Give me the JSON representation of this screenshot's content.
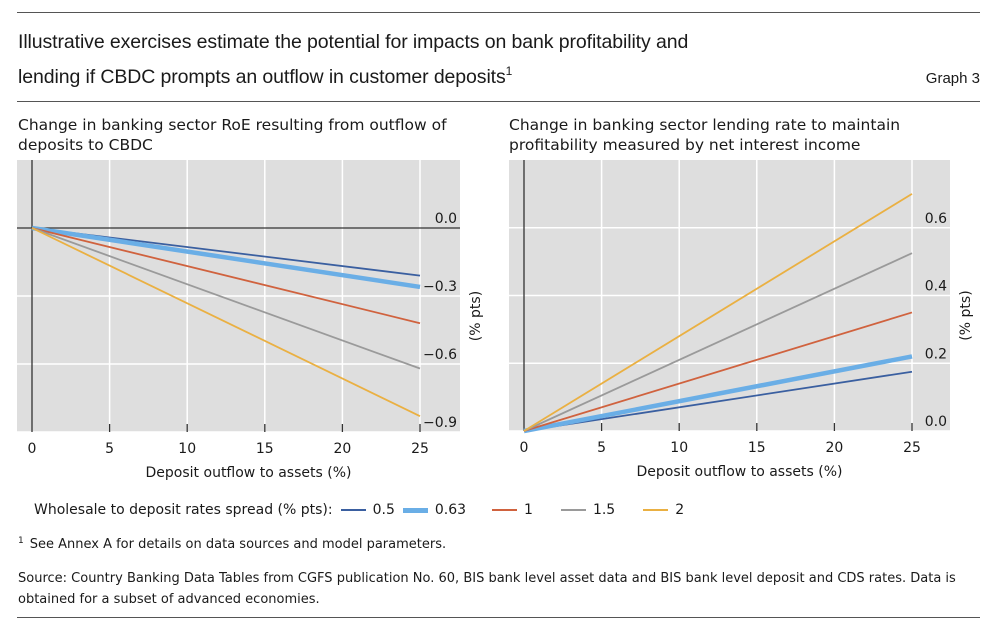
{
  "header": {
    "title_line1": "Illustrative exercises estimate the potential for impacts on bank profitability and",
    "title_line2": "lending if CBDC prompts an outflow in customer deposits",
    "title_footnote_mark": "1",
    "graph_number": "Graph 3"
  },
  "legend": {
    "label": "Wholesale to deposit rates spread (% pts):",
    "items": [
      {
        "label": "0.5",
        "color": "#3a5fa0"
      },
      {
        "label": "0.63",
        "color": "#6aaee6"
      },
      {
        "label": "1",
        "color": "#d0623e"
      },
      {
        "label": "1.5",
        "color": "#9a9a9a"
      },
      {
        "label": "2",
        "color": "#eab042"
      }
    ]
  },
  "footnote": {
    "mark": "1",
    "text": "See Annex A for details on data sources and model parameters."
  },
  "source": "Source: Country Banking Data Tables from CGFS publication No. 60, BIS bank level asset data and BIS bank level deposit and CDS rates. Data is obtained for a subset of advanced economies.",
  "chart_data": [
    {
      "type": "line",
      "title": "Change in banking sector RoE resulting from outflow of deposits to CBDC",
      "xlabel": "Deposit outflow to assets (%)",
      "ylabel": "(% pts)",
      "x": [
        0,
        25
      ],
      "xticks": [
        "0",
        "5",
        "10",
        "15",
        "20",
        "25"
      ],
      "yticks": [
        "0.0",
        "−0.3",
        "−0.6",
        "−0.9"
      ],
      "ytick_values": [
        0,
        -0.3,
        -0.6,
        -0.9
      ],
      "xlim": [
        0,
        25
      ],
      "ylim": [
        -0.9,
        0.3
      ],
      "grid": true,
      "series": [
        {
          "name": "0.5",
          "values": [
            0,
            -0.21
          ]
        },
        {
          "name": "0.63",
          "values": [
            0,
            -0.26
          ]
        },
        {
          "name": "1",
          "values": [
            0,
            -0.42
          ]
        },
        {
          "name": "1.5",
          "values": [
            0,
            -0.62
          ]
        },
        {
          "name": "2",
          "values": [
            0,
            -0.83
          ]
        }
      ]
    },
    {
      "type": "line",
      "title": "Change in banking sector lending rate to maintain profitability measured by net interest income",
      "xlabel": "Deposit outflow to assets (%)",
      "ylabel": "(% pts)",
      "x": [
        0,
        25
      ],
      "xticks": [
        "0",
        "5",
        "10",
        "15",
        "20",
        "25"
      ],
      "yticks": [
        "0.0",
        "0.2",
        "0.4",
        "0.6"
      ],
      "ytick_values": [
        0,
        0.2,
        0.4,
        0.6
      ],
      "xlim": [
        0,
        25
      ],
      "ylim": [
        0,
        0.8
      ],
      "grid": true,
      "series": [
        {
          "name": "0.5",
          "values": [
            0,
            0.175
          ]
        },
        {
          "name": "0.63",
          "values": [
            0,
            0.22
          ]
        },
        {
          "name": "1",
          "values": [
            0,
            0.35
          ]
        },
        {
          "name": "1.5",
          "values": [
            0,
            0.525
          ]
        },
        {
          "name": "2",
          "values": [
            0,
            0.7
          ]
        }
      ]
    }
  ]
}
